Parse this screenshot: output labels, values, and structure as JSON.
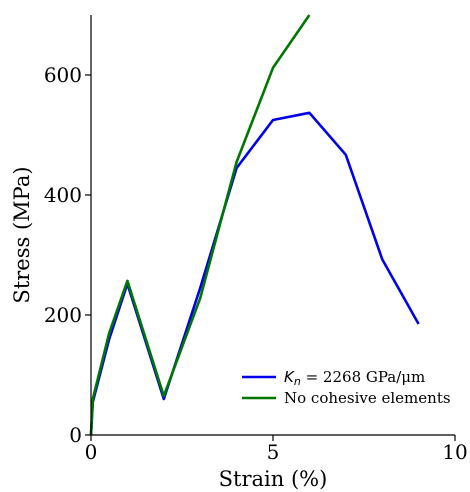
{
  "chart_data": {
    "type": "line",
    "title": "",
    "xlabel": "Strain (%)",
    "ylabel": "Stress (MPa)",
    "xlim": [
      0,
      10
    ],
    "ylim": [
      0,
      700
    ],
    "xticks": [
      0,
      5,
      10
    ],
    "xtick_labels": [
      "0",
      "5",
      "10"
    ],
    "yticks": [
      0,
      200,
      400,
      600
    ],
    "ytick_labels": [
      "0",
      "200",
      "400",
      "600"
    ],
    "grid": false,
    "legend_position": "lower-right",
    "series": [
      {
        "name": "K_n = 2268 GPa/μm",
        "legend_symbol": "K",
        "legend_subscript": "n",
        "legend_rest": " = 2268 GPa/μm",
        "color": "#0000ee",
        "x": [
          0,
          0.05,
          0.5,
          1,
          2,
          3,
          4,
          5,
          6,
          7,
          8,
          9
        ],
        "y": [
          0,
          55,
          160,
          252,
          60,
          245,
          445,
          525,
          537,
          467,
          293,
          185
        ]
      },
      {
        "name": "No cohesive elements",
        "legend_text": "No cohesive elements",
        "color": "#007700",
        "x": [
          0,
          0.05,
          0.5,
          1,
          2,
          3,
          4,
          5,
          6
        ],
        "y": [
          0,
          60,
          170,
          257,
          65,
          228,
          455,
          612,
          700
        ]
      }
    ]
  }
}
